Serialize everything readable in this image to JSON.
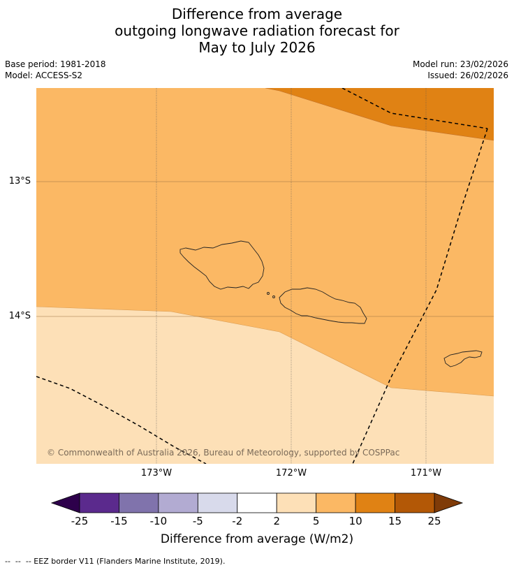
{
  "title": {
    "line1": "Difference from average",
    "line2": "outgoing longwave radiation forecast for",
    "line3": "May to July 2026"
  },
  "meta": {
    "base_period": "Base period: 1981-2018",
    "model": "Model: ACCESS-S2",
    "model_run": "Model run: 23/02/2026",
    "issued": "Issued: 26/02/2026"
  },
  "map": {
    "lat_labels": [
      "13°S",
      "14°S"
    ],
    "lon_labels": [
      "173°W",
      "172°W",
      "171°W"
    ],
    "copyright": "© Commonwealth of Australia 2026, Bureau of Meteorology, supported by COSPPac",
    "regions": [
      {
        "name": "5 to 10",
        "color": "#fbb864"
      },
      {
        "name": "10 to 15",
        "color": "#e08214"
      },
      {
        "name": "2 to 5",
        "color": "#fde0b7"
      }
    ]
  },
  "colorbar": {
    "ticks": [
      "-25",
      "-15",
      "-10",
      "-5",
      "-2",
      "2",
      "5",
      "10",
      "15",
      "25"
    ],
    "colors": [
      "#5b2a8d",
      "#8073ac",
      "#b2abd2",
      "#d8daeb",
      "#ffffff",
      "#fde0b7",
      "#fbb864",
      "#e08214",
      "#b35806"
    ],
    "under_color": "#2d004b",
    "over_color": "#7f3b08",
    "label": "Difference from average (W/m2)"
  },
  "footer": "--  --  -- EEZ border V11 (Flanders Marine Institute, 2019)."
}
